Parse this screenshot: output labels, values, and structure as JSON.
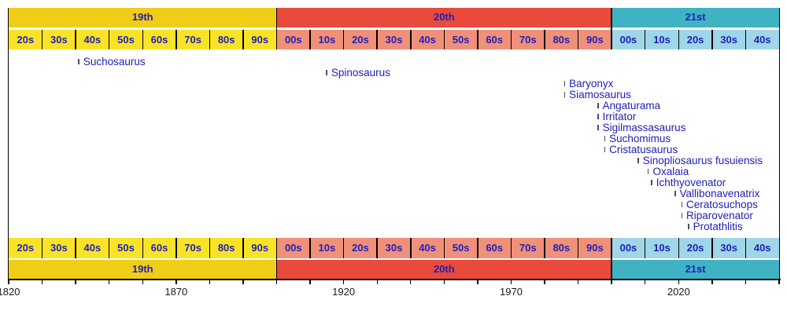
{
  "chart_data": {
    "type": "timeline",
    "x_axis": {
      "start": 1820,
      "end": 2050,
      "minor_tick_interval_years": 10,
      "major_labels": [
        {
          "text": "1820",
          "year": 1820
        },
        {
          "text": "1870",
          "year": 1870
        },
        {
          "text": "1920",
          "year": 1920
        },
        {
          "text": "1970",
          "year": 1970
        },
        {
          "text": "2020",
          "year": 2020
        }
      ]
    },
    "eras": [
      {
        "label": "19th",
        "start": 1820,
        "end": 1900,
        "band_color": "#f0cd16",
        "decade_color": "#fae327",
        "decades": [
          "20s",
          "30s",
          "40s",
          "50s",
          "60s",
          "70s",
          "80s",
          "90s"
        ]
      },
      {
        "label": "20th",
        "start": 1900,
        "end": 2000,
        "band_color": "#e94a3c",
        "decade_color": "#f19079",
        "decades": [
          "00s",
          "10s",
          "20s",
          "30s",
          "40s",
          "50s",
          "60s",
          "70s",
          "80s",
          "90s"
        ]
      },
      {
        "label": "21st",
        "start": 2000,
        "end": 2050,
        "band_color": "#3fb3c4",
        "decade_color": "#9fd6e8",
        "decades": [
          "00s",
          "10s",
          "20s",
          "30s",
          "40s"
        ]
      }
    ],
    "events": [
      {
        "name": "Suchosaurus",
        "year": 1841
      },
      {
        "name": "Spinosaurus",
        "year": 1915
      },
      {
        "name": "Baryonyx",
        "year": 1986
      },
      {
        "name": "Siamosaurus",
        "year": 1986
      },
      {
        "name": "Angaturama",
        "year": 1996
      },
      {
        "name": "Irritator",
        "year": 1996
      },
      {
        "name": "Sigilmassasaurus",
        "year": 1996
      },
      {
        "name": "Suchomimus",
        "year": 1998
      },
      {
        "name": "Cristatusaurus",
        "year": 1998
      },
      {
        "name": "Sinopliosaurus fusuiensis",
        "year": 2008
      },
      {
        "name": "Oxalaia",
        "year": 2011
      },
      {
        "name": "Ichthyovenator",
        "year": 2012
      },
      {
        "name": "Vallibonavenatrix",
        "year": 2019
      },
      {
        "name": "Ceratosuchops",
        "year": 2021
      },
      {
        "name": "Riparovenator",
        "year": 2021
      },
      {
        "name": "Protathlitis",
        "year": 2023
      }
    ],
    "colors": {
      "label_text": "#2020b8",
      "event_tick": "#4a4a68",
      "axis_text": "#1a1a1a",
      "axis_line": "#000000",
      "divider": "#000000",
      "background": "#ffffff"
    }
  }
}
